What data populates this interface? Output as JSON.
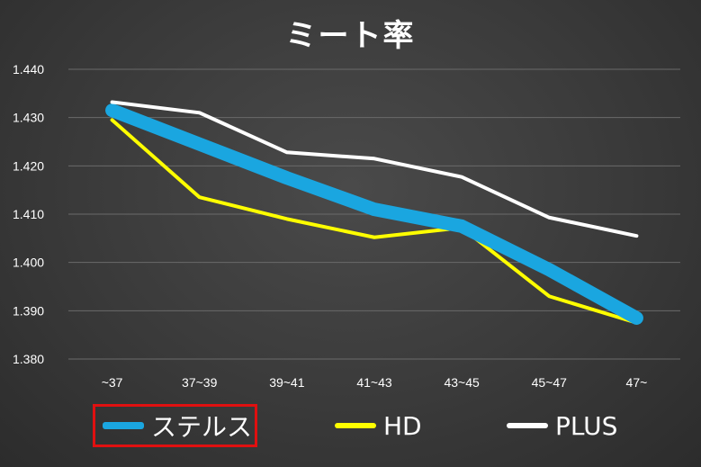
{
  "chart_data": {
    "type": "line",
    "title": "ミート率",
    "categories": [
      "~37",
      "37~39",
      "39~41",
      "41~43",
      "43~45",
      "45~47",
      "47~"
    ],
    "ylim": [
      1.38,
      1.44
    ],
    "yticks": [
      "1.380",
      "1.390",
      "1.400",
      "1.410",
      "1.420",
      "1.430",
      "1.440"
    ],
    "grid": true,
    "legend_position": "bottom",
    "series": [
      {
        "name": "ステルス",
        "color": "#1aa6e0",
        "values": [
          1.4315,
          1.4245,
          1.4175,
          1.411,
          1.4075,
          1.3985,
          1.3885
        ]
      },
      {
        "name": "HD",
        "color": "#ffff00",
        "values": [
          1.4295,
          1.4135,
          1.409,
          1.4052,
          1.4072,
          1.393,
          1.3875
        ]
      },
      {
        "name": "PLUS",
        "color": "#ffffff",
        "values": [
          1.4332,
          1.431,
          1.4228,
          1.4215,
          1.4177,
          1.4093,
          1.4055
        ]
      }
    ]
  }
}
